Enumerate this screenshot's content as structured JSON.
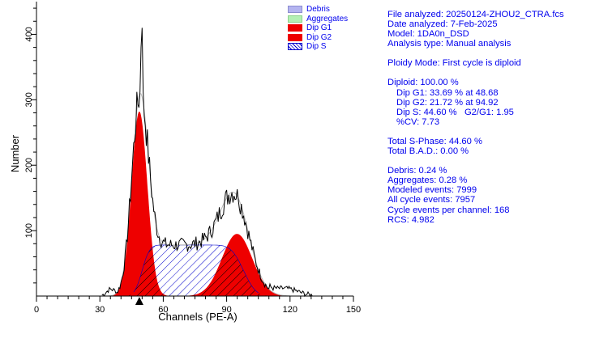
{
  "chart_data": {
    "type": "area",
    "xlabel": "Channels (PE-A)",
    "ylabel": "Number",
    "xlim": [
      0,
      150
    ],
    "ylim": [
      0,
      450
    ],
    "xticks": [
      0,
      30,
      60,
      90,
      120,
      150
    ],
    "yticks": [
      100,
      200,
      300,
      400
    ],
    "marker_x": 48.68,
    "legend": [
      {
        "label": "Debris",
        "color": "#b4b4f0",
        "style": "fill"
      },
      {
        "label": "Aggregates",
        "color": "#b4f0b4",
        "style": "fill"
      },
      {
        "label": "Dip G1",
        "color": "#ee0000",
        "style": "fill"
      },
      {
        "label": "Dip G2",
        "color": "#ee0000",
        "style": "fill"
      },
      {
        "label": "Dip S",
        "color": "#0000cc",
        "style": "hatch"
      }
    ],
    "series": [
      {
        "name": "Dip G1",
        "peak_x": 48.68,
        "peak_y": 282
      },
      {
        "name": "Dip G2",
        "peak_x": 94.92,
        "peak_y": 95
      },
      {
        "name": "Dip S",
        "start_x": 50,
        "end_x": 98,
        "level_y": 78
      }
    ]
  },
  "stats": {
    "file": "File analyzed: 20250124-ZHOU2_CTRA.fcs",
    "date": "Date analyzed: 7-Feb-2025",
    "model": "Model: 1DA0n_DSD",
    "analysis_type": "Analysis type: Manual analysis",
    "ploidy": "Ploidy Mode: First cycle is diploid",
    "diploid": "Diploid: 100.00 %",
    "dip_g1": "Dip G1: 33.69 % at 48.68",
    "dip_g2": "Dip G2: 21.72 % at 94.92",
    "dip_s": "Dip S: 44.60 %   G2/G1: 1.95",
    "cv": "%CV: 7.73",
    "total_s": "Total S-Phase: 44.60 %",
    "total_bad": "Total B.A.D.: 0.00 %",
    "debris": "Debris: 0.24 %",
    "aggregates": "Aggregates: 0.28 %",
    "modeled": "Modeled events: 7999",
    "all_cycle": "All cycle events: 7957",
    "cycle_per_channel": "Cycle events per channel: 168",
    "rcs": "RCS: 4.982"
  }
}
